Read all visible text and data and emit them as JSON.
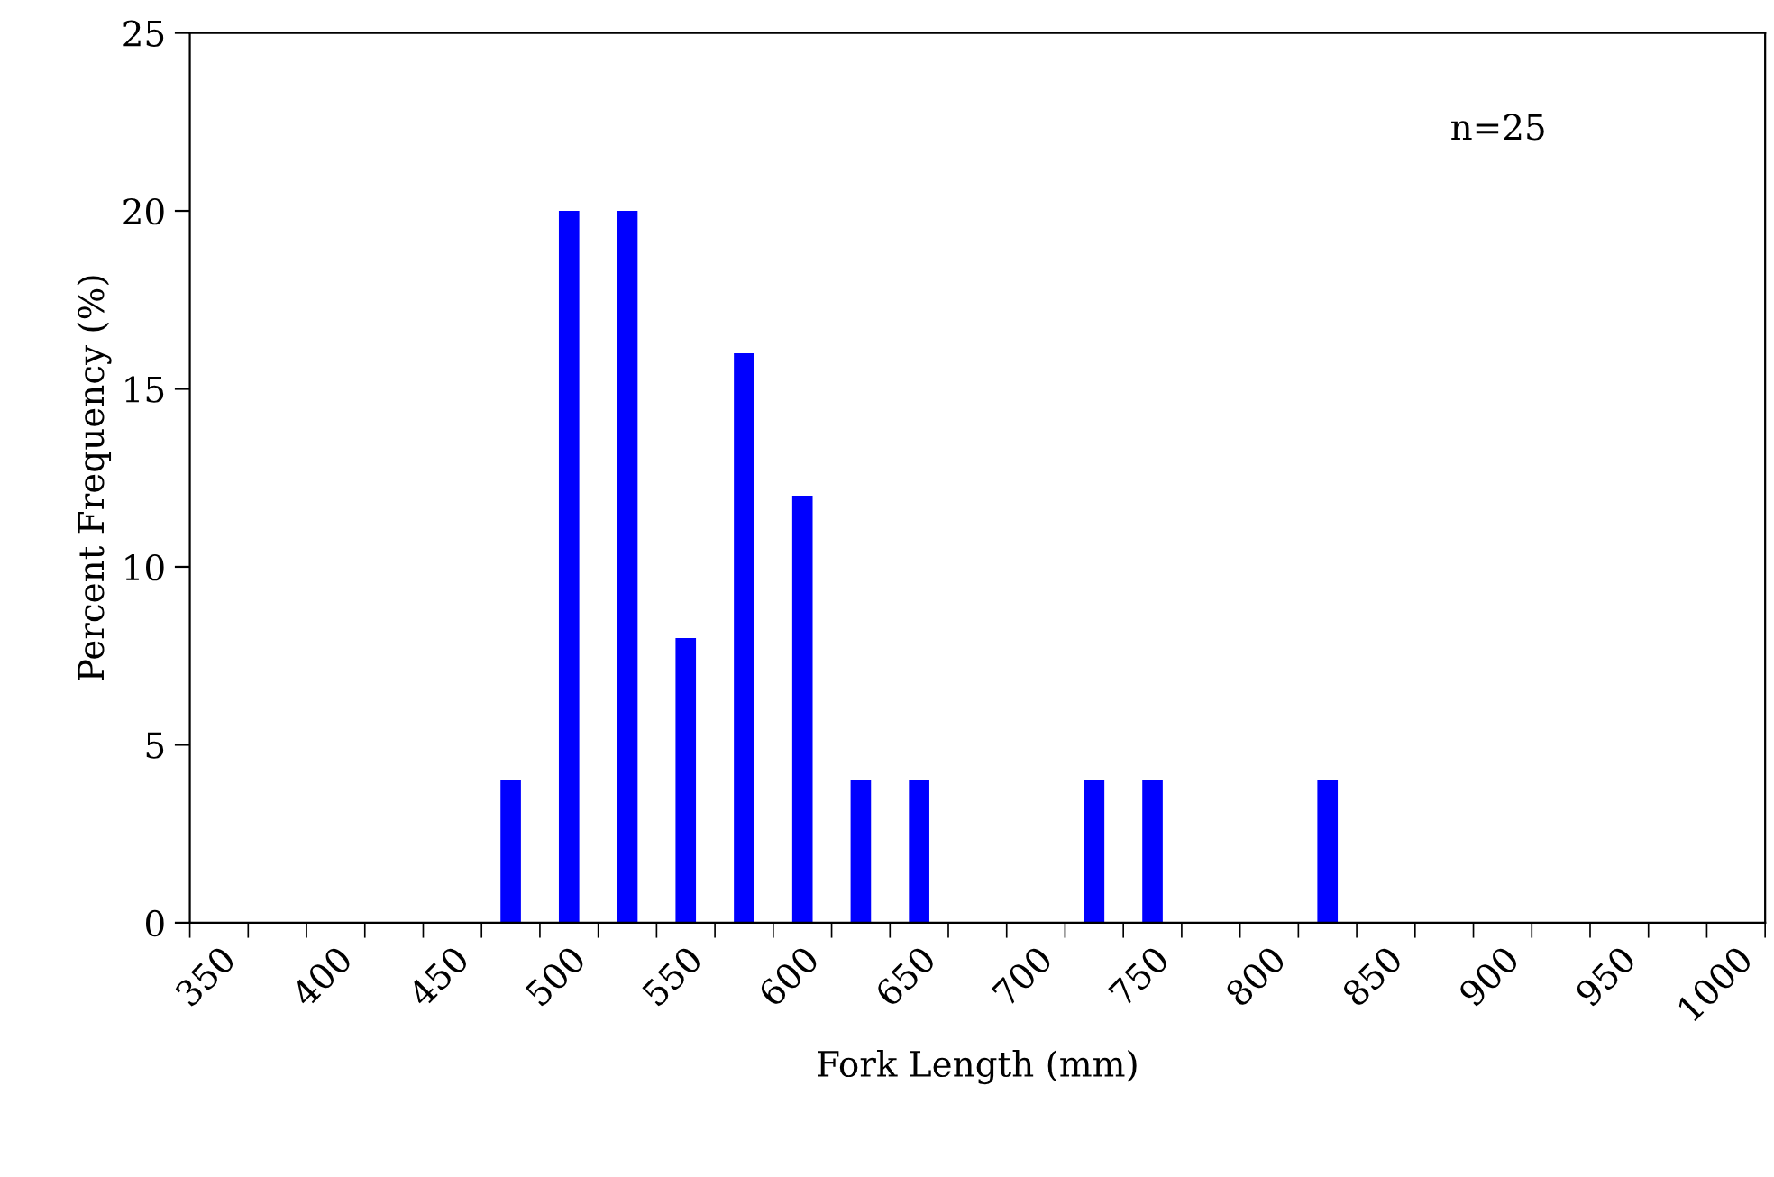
{
  "chart_data": {
    "type": "bar",
    "xlabel": "Fork Length (mm)",
    "ylabel": "Percent Frequency (%)",
    "categories": [
      "350",
      null,
      "400",
      null,
      "450",
      null,
      "500",
      null,
      "550",
      null,
      "600",
      null,
      "650",
      null,
      "700",
      null,
      "750",
      null,
      "800",
      null,
      "850",
      null,
      "900",
      null,
      "950",
      null,
      "1000"
    ],
    "values": [
      0,
      0,
      0,
      0,
      0,
      4,
      20,
      20,
      8,
      16,
      12,
      4,
      4,
      0,
      0,
      4,
      4,
      0,
      0,
      4,
      0,
      0,
      0,
      0,
      0,
      0,
      0
    ],
    "color": "#0000ff",
    "ylim": [
      0,
      25
    ],
    "yticks": [
      0,
      5,
      10,
      15,
      20,
      25
    ],
    "annotations": [
      "n=25"
    ],
    "grid": false,
    "legend": false
  }
}
